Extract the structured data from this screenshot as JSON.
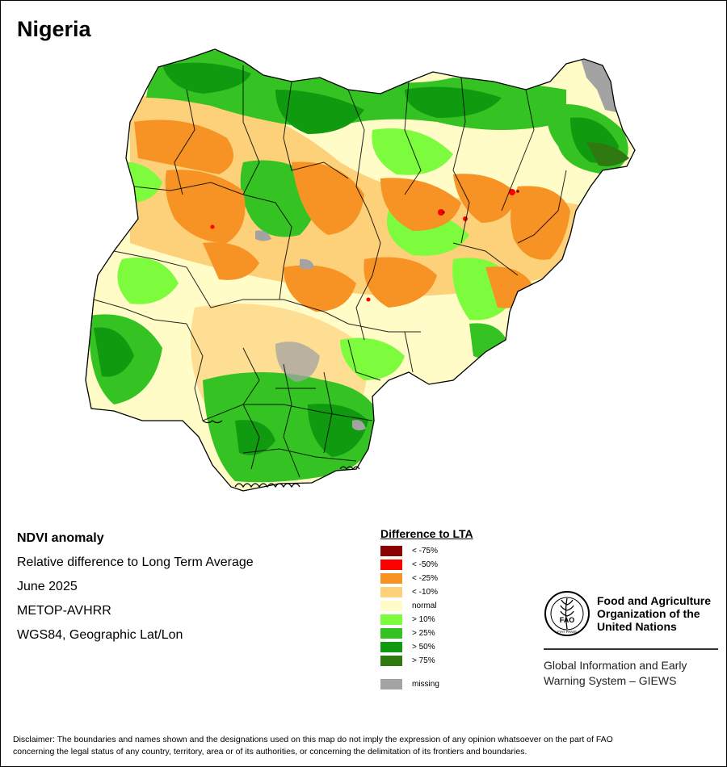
{
  "title": "Nigeria",
  "info": {
    "product": "NDVI anomaly",
    "description": "Relative difference to Long Term Average",
    "period": "June 2025",
    "sensor": "METOP-AVHRR",
    "projection": "WGS84, Geographic Lat/Lon"
  },
  "legend": {
    "title": "Difference to LTA",
    "classes": [
      {
        "label": "< -75%",
        "color": "#8b0000"
      },
      {
        "label": "< -50%",
        "color": "#ff0000"
      },
      {
        "label": "< -25%",
        "color": "#f79225"
      },
      {
        "label": "< -10%",
        "color": "#fdd17a"
      },
      {
        "label": "normal",
        "color": "#fffcc8"
      },
      {
        "label": "> 10%",
        "color": "#7cfc3c"
      },
      {
        "label": "> 25%",
        "color": "#34c322"
      },
      {
        "label": "> 50%",
        "color": "#109a10"
      },
      {
        "label": "> 75%",
        "color": "#2f7a10"
      }
    ],
    "missing": {
      "label": "missing",
      "color": "#a3a3a3"
    }
  },
  "fao": {
    "logo_text": "FAO",
    "logo_motto": "FIAT PANIS",
    "name_line1": "Food and Agriculture",
    "name_line2": "Organization of the",
    "name_line3": "United Nations",
    "system_line1": "Global Information and Early",
    "system_line2": "Warning System – GIEWS"
  },
  "disclaimer_line1": "Disclaimer: The boundaries and names shown and the designations used on this map do not imply the expression of any opinion whatsoever on the part of FAO",
  "disclaimer_line2": "concerning the legal status of any country, territory, area or of its authorities, or concerning the delimitation of its frontiers and boundaries."
}
